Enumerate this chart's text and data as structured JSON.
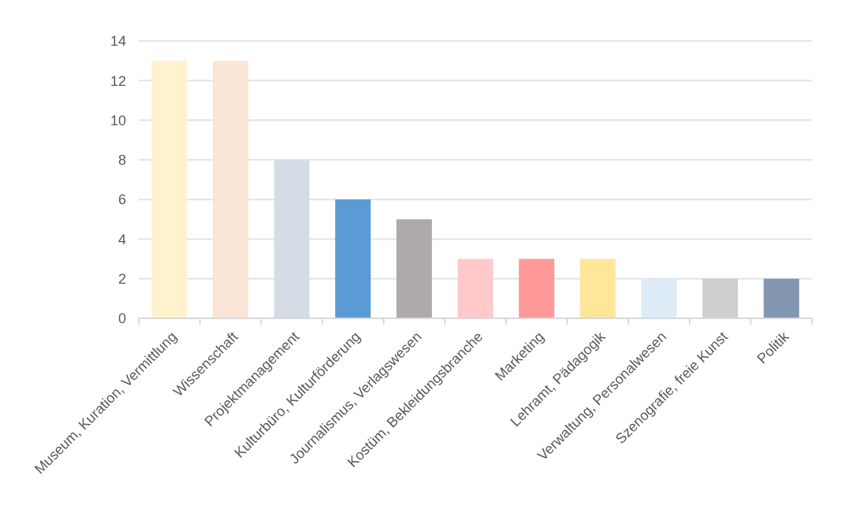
{
  "chart_data": {
    "type": "bar",
    "categories": [
      "Museum, Kuration, Vermittlung",
      "Wissenschaft",
      "Projektmanagement",
      "Kulturbüro, Kulturförderung",
      "Journalismus, Verlagswesen",
      "Kostüm, Bekleidungsbranche",
      "Marketing",
      "Lehramt, Pädagogik",
      "Verwaltung, Personalwesen",
      "Szenografie, freie Kunst",
      "Politik"
    ],
    "values": [
      13,
      13,
      8,
      6,
      5,
      3,
      3,
      3,
      2,
      2,
      2
    ],
    "colors": [
      "#fff2cc",
      "#fbe5d6",
      "#d6dce5",
      "#5b9bd5",
      "#aeaaaa",
      "#ffc9c9",
      "#ff9999",
      "#ffe699",
      "#ddebf7",
      "#d0cece",
      "#8497b0"
    ],
    "ylim": [
      0,
      14
    ],
    "yticks": [
      0,
      2,
      4,
      6,
      8,
      10,
      12,
      14
    ],
    "grid": "y"
  }
}
